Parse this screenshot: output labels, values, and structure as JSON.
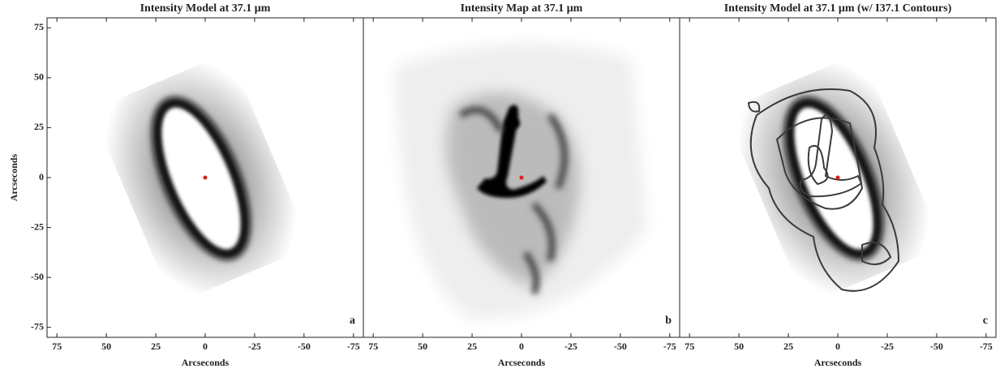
{
  "chart_data": [
    {
      "type": "image",
      "title": "Intensity Model at 37.1 μm",
      "xlabel": "Arcseconds",
      "ylabel": "Arcseconds",
      "xlim": [
        80,
        -80
      ],
      "ylim": [
        -80,
        80
      ],
      "xticks": [
        75,
        50,
        25,
        0,
        -25,
        -50,
        -75
      ],
      "yticks": [
        75,
        50,
        25,
        0,
        -25,
        -50,
        -75
      ],
      "panel_label": "a",
      "points": {
        "x": [
          0
        ],
        "y": [
          0
        ],
        "color": "#e41a1c"
      }
    },
    {
      "type": "image",
      "title": "Intensity Map at 37.1 μm",
      "xlabel": "Arcseconds",
      "xlim": [
        80,
        -80
      ],
      "ylim": [
        -80,
        80
      ],
      "xticks": [
        75,
        50,
        25,
        0,
        -25,
        -50,
        -75
      ],
      "panel_label": "b",
      "points": {
        "x": [
          0
        ],
        "y": [
          0
        ],
        "color": "#e41a1c"
      }
    },
    {
      "type": "image",
      "title": "Intensity Model at 37.1 μm (w/ I37.1 Contours)",
      "xlabel": "Arcseconds",
      "xlim": [
        80,
        -80
      ],
      "ylim": [
        -80,
        80
      ],
      "xticks": [
        75,
        50,
        25,
        0,
        -25,
        -50,
        -75
      ],
      "panel_label": "c",
      "points": {
        "x": [
          0
        ],
        "y": [
          0
        ],
        "color": "#e41a1c"
      }
    }
  ]
}
